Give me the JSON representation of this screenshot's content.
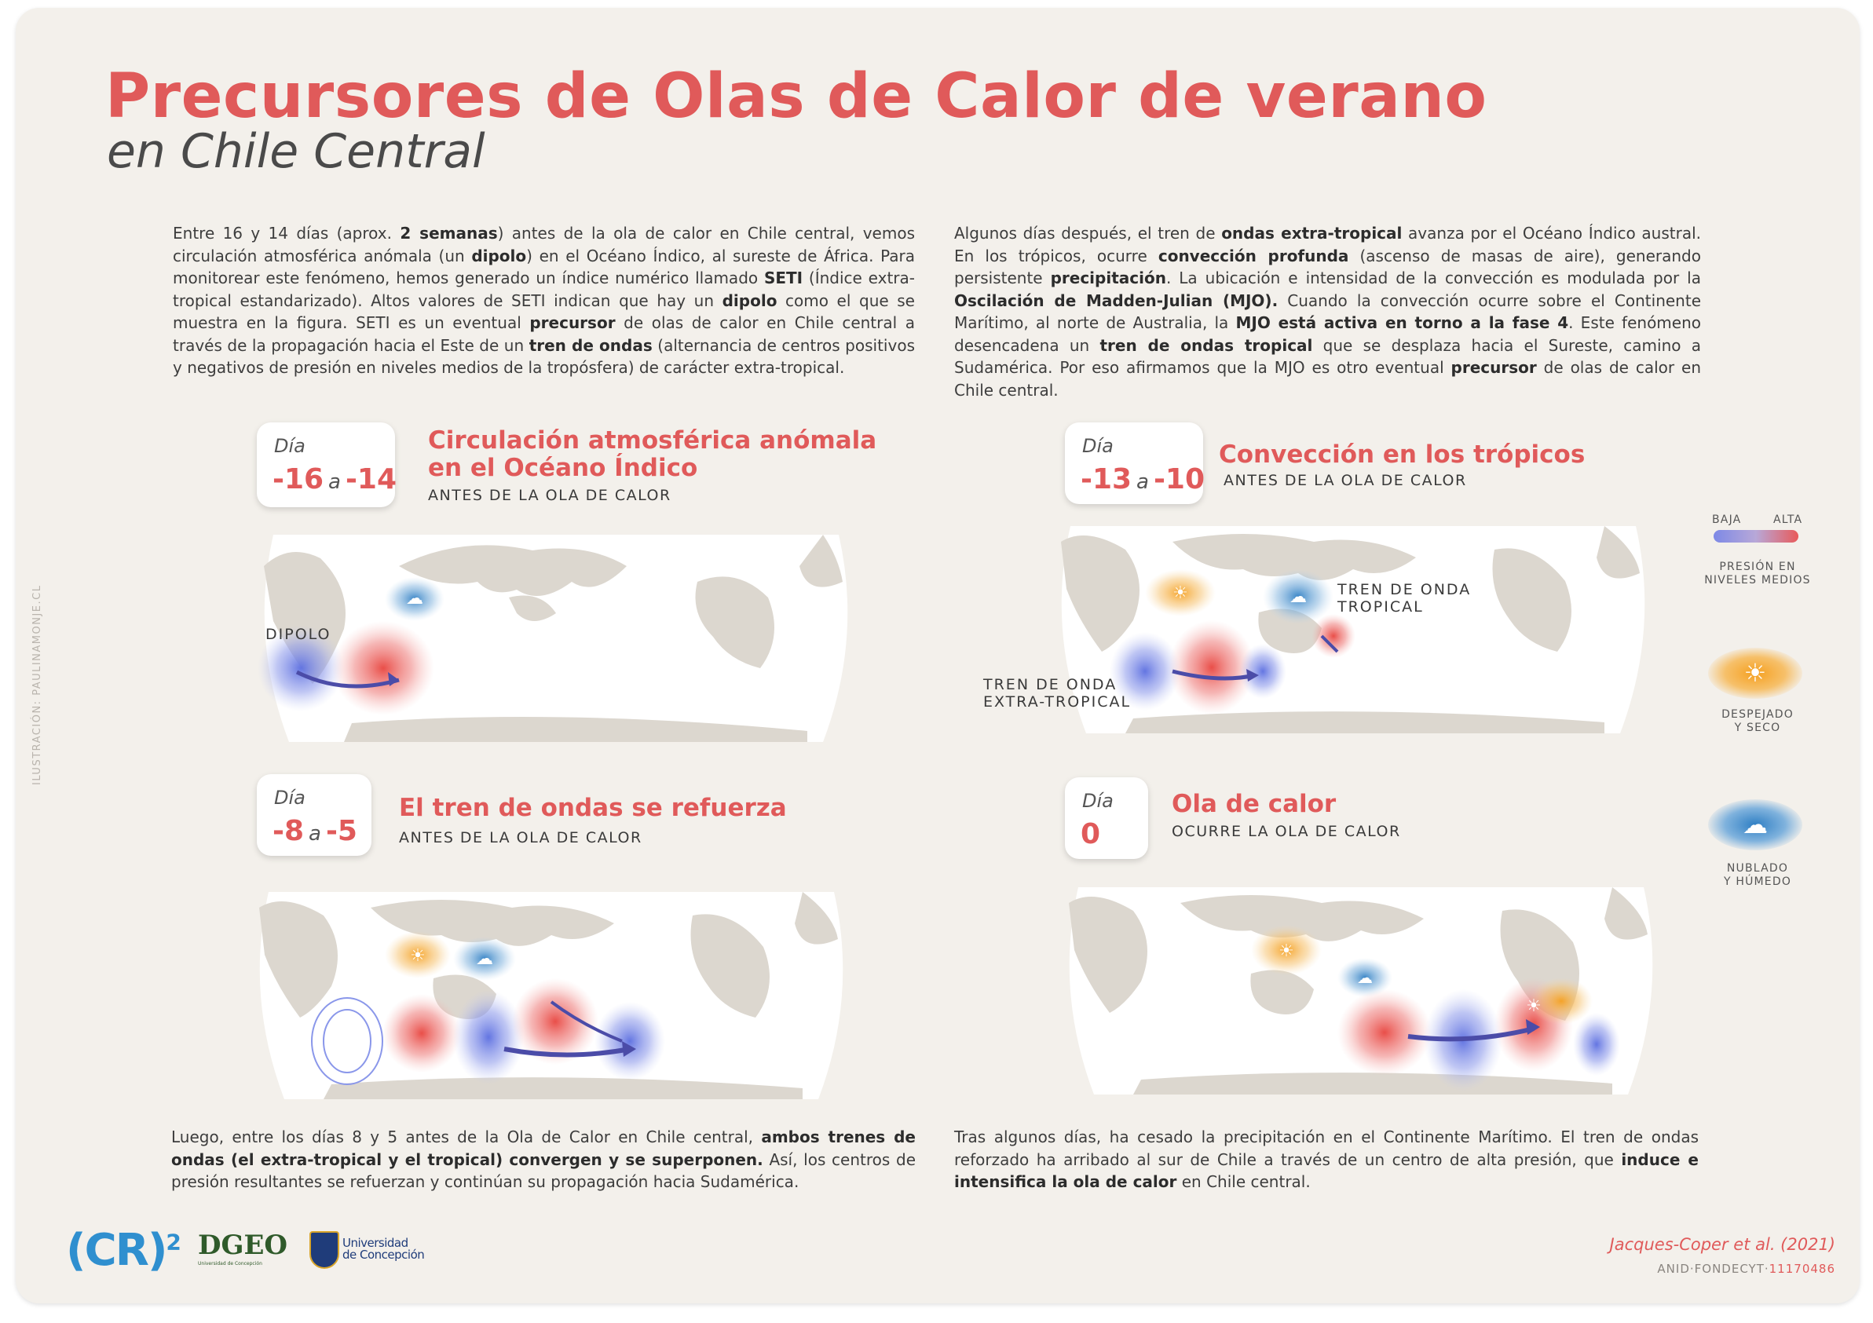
{
  "title": "Precursores de Olas de Calor de verano",
  "subtitle": "en Chile Central",
  "credit": "ILUSTRACIÓN: PAULINAMONJE.CL",
  "intro_left": [
    {
      "t": "Entre 16 y 14 días (aprox. "
    },
    {
      "t": "2 semanas",
      "b": true
    },
    {
      "t": ") antes de la ola de calor en Chile central, vemos circulación atmosférica anómala (un "
    },
    {
      "t": "dipolo",
      "b": true
    },
    {
      "t": ") en el Océano Índico, al sureste de África. Para monitorear este fenómeno, hemos generado un índice numérico llamado "
    },
    {
      "t": "SETI",
      "b": true
    },
    {
      "t": " (Índice extra-tropical estandarizado). Altos valores de SETI indican que hay un "
    },
    {
      "t": "dipolo",
      "b": true
    },
    {
      "t": " como el que se muestra en la figura. SETI es un eventual "
    },
    {
      "t": "precursor",
      "b": true
    },
    {
      "t": " de olas de calor en Chile central a través de la propagación hacia el Este de un "
    },
    {
      "t": "tren de ondas",
      "b": true
    },
    {
      "t": " (alternancia de centros positivos y negativos de presión en niveles medios de la tropósfera) de carácter extra-tropical."
    }
  ],
  "intro_right": [
    {
      "t": "Algunos días después, el tren de "
    },
    {
      "t": "ondas extra-tropical",
      "b": true
    },
    {
      "t": " avanza por el Océano Índico austral. En los trópicos, ocurre "
    },
    {
      "t": "convección profunda",
      "b": true
    },
    {
      "t": " (ascenso de masas de aire), generando persistente "
    },
    {
      "t": "precipitación",
      "b": true
    },
    {
      "t": ". La ubicación e intensidad de la convección es modulada por la "
    },
    {
      "t": "Oscilación de Madden-Julian (MJO).",
      "b": true
    },
    {
      "t": " Cuando la convección ocurre sobre el Continente Marítimo, al norte de Australia, la "
    },
    {
      "t": "MJO está activa en torno a la fase 4",
      "b": true
    },
    {
      "t": ". Este fenómeno desencadena un "
    },
    {
      "t": "tren de ondas tropical",
      "b": true
    },
    {
      "t": " que se desplaza hacia el Sureste, camino a Sudamérica. Por eso afirmamos que la MJO es otro eventual "
    },
    {
      "t": "precursor",
      "b": true
    },
    {
      "t": " de olas de calor en Chile central."
    }
  ],
  "bottom_left": [
    {
      "t": "Luego, entre los días 8 y 5 antes de la Ola de Calor en Chile central, "
    },
    {
      "t": "ambos trenes de ondas (el extra-tropical y el tropical) convergen y se superponen.",
      "b": true
    },
    {
      "t": " Así, los centros de presión resultantes se refuerzan y continúan su propagación hacia Sudamérica."
    }
  ],
  "bottom_right": [
    {
      "t": "Tras algunos días, ha cesado la precipitación en el Continente Marítimo. El tren de ondas reforzado ha arribado al sur de Chile a través de un centro de alta presión, que "
    },
    {
      "t": "induce e intensifica la ola de calor",
      "b": true
    },
    {
      "t": " en Chile central."
    }
  ],
  "panels": [
    {
      "day_label": "Día",
      "from": "-16",
      "sep": "a",
      "to": "-14",
      "title_1": "Circulación atmosférica anómala",
      "title_2": "en el Océano Índico",
      "subtitle": "ANTES DE LA OLA DE CALOR",
      "map_label": "DIPOLO"
    },
    {
      "day_label": "Día",
      "from": "-13",
      "sep": "a",
      "to": "-10",
      "title_1": "Convección en los trópicos",
      "subtitle": "ANTES DE LA OLA DE CALOR",
      "label_tropical_1": "TREN DE ONDA",
      "label_tropical_2": "TROPICAL",
      "label_extra_1": "TREN DE ONDA",
      "label_extra_2": "EXTRA-TROPICAL"
    },
    {
      "day_label": "Día",
      "from": "-8",
      "sep": "a",
      "to": "-5",
      "title_1": "El tren de ondas se refuerza",
      "subtitle": "ANTES DE LA OLA DE CALOR"
    },
    {
      "day_label": "Día",
      "from": "0",
      "title_1": "Ola de calor",
      "subtitle": "OCURRE LA OLA DE CALOR"
    }
  ],
  "legend": {
    "low": "BAJA",
    "high": "ALTA",
    "pressure_1": "PRESIÓN EN",
    "pressure_2": "NIVELES MEDIOS",
    "clear_1": "DESPEJADO",
    "clear_2": "Y SECO",
    "cloudy_1": "NUBLADO",
    "cloudy_2": "Y HÚMEDO"
  },
  "logos": {
    "cr2": "(CR)",
    "cr2_sup": "2",
    "dgeo": "DGEO",
    "dgeo_small": "Universidad de Concepción",
    "udec_1": "Universidad",
    "udec_2": "de Concepción"
  },
  "reference": {
    "authors": "Jacques-Coper et al. (2021)",
    "grant_prefix": "ANID·FONDECYT·",
    "grant_number": "11170486"
  },
  "colors": {
    "accent": "#e05a5a",
    "high": "#e8453f",
    "low": "#6f7fe0",
    "warm": "#f2a33a",
    "wet": "#3d86c6",
    "land": "#dcd7cf"
  }
}
